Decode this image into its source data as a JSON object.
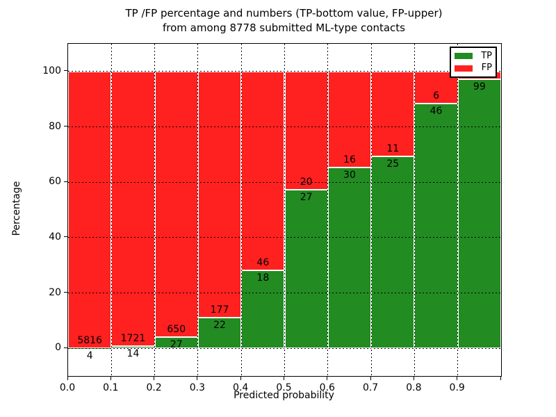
{
  "title": {
    "line1": "TP /FP percentage and numbers (TP-bottom value, FP-upper)",
    "line2": "from among 8778 submitted ML-type contacts"
  },
  "axes": {
    "ylabel": "Percentage",
    "xlabel": "Predicted probability",
    "yticks": [
      "0",
      "20",
      "40",
      "60",
      "80",
      "100"
    ],
    "ytick_values": [
      0,
      20,
      40,
      60,
      80,
      100
    ],
    "xticks": [
      "0.0",
      "0.1",
      "0.2",
      "0.3",
      "0.4",
      "0.5",
      "0.6",
      "0.7",
      "0.8",
      "0.9"
    ]
  },
  "legend": {
    "items": [
      {
        "label": "TP",
        "color": "#228b22"
      },
      {
        "label": "FP",
        "color": "#ff2020"
      }
    ]
  },
  "chart_data": {
    "type": "bar",
    "stacked": true,
    "title": "TP /FP percentage and numbers (TP-bottom value, FP-upper) from among 8778 submitted ML-type contacts",
    "xlabel": "Predicted probability",
    "ylabel": "Percentage",
    "total_submitted": 8778,
    "ylim": [
      -10,
      110
    ],
    "xlim": [
      0.0,
      1.0
    ],
    "grid": "dotted",
    "legend_position": "upper right",
    "bin_width": 0.1,
    "bins": [
      {
        "x": "0.0",
        "tp_label": "4",
        "fp_label": "5816",
        "tp_count": 4,
        "fp_count": 5816,
        "tp_pct": 0.1
      },
      {
        "x": "0.1",
        "tp_label": "14",
        "fp_label": "1721",
        "tp_count": 14,
        "fp_count": 1721,
        "tp_pct": 0.8
      },
      {
        "x": "0.2",
        "tp_label": "27",
        "fp_label": "650",
        "tp_count": 27,
        "fp_count": 650,
        "tp_pct": 4.0
      },
      {
        "x": "0.3",
        "tp_label": "22",
        "fp_label": "177",
        "tp_count": 22,
        "fp_count": 177,
        "tp_pct": 11.1
      },
      {
        "x": "0.4",
        "tp_label": "18",
        "fp_label": "46",
        "tp_count": 18,
        "fp_count": 46,
        "tp_pct": 28.1
      },
      {
        "x": "0.5",
        "tp_label": "27",
        "fp_label": "20",
        "tp_count": 27,
        "fp_count": 20,
        "tp_pct": 57.4
      },
      {
        "x": "0.6",
        "tp_label": "30",
        "fp_label": "16",
        "tp_count": 30,
        "fp_count": 16,
        "tp_pct": 65.2
      },
      {
        "x": "0.7",
        "tp_label": "25",
        "fp_label": "11",
        "tp_count": 25,
        "fp_count": 11,
        "tp_pct": 69.4
      },
      {
        "x": "0.8",
        "tp_label": "46",
        "fp_label": "6",
        "tp_count": 46,
        "fp_count": 6,
        "tp_pct": 88.5
      },
      {
        "x": "0.9",
        "tp_label": "99",
        "fp_label": "",
        "tp_count": 99,
        "fp_count": null,
        "tp_pct": 97.1
      }
    ]
  }
}
